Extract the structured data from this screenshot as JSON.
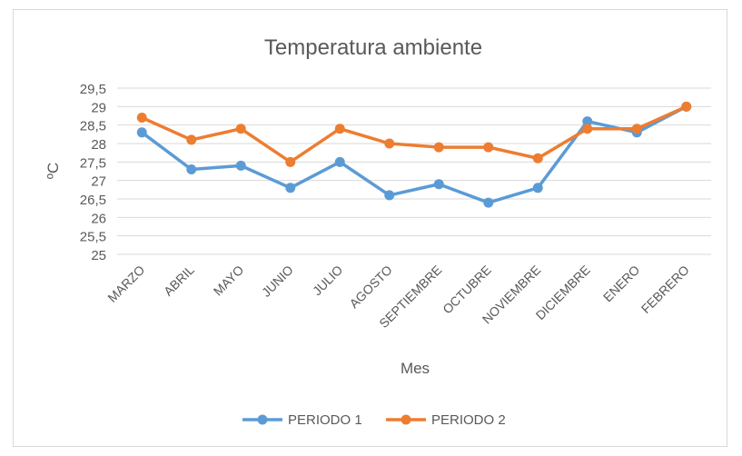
{
  "chart_data": {
    "type": "line",
    "title": "Temperatura ambiente",
    "xlabel": "Mes",
    "ylabel": "ºC",
    "ylim": [
      25,
      29.5
    ],
    "yticks": [
      "25",
      "25,5",
      "26",
      "26,5",
      "27",
      "27,5",
      "28",
      "28,5",
      "29",
      "29,5"
    ],
    "categories": [
      "MARZO",
      "ABRIL",
      "MAYO",
      "JUNIO",
      "JULIO",
      "AGOSTO",
      "SEPTIEMBRE",
      "OCTUBRE",
      "NOVIEMBRE",
      "DICIEMBRE",
      "ENERO",
      "FEBRERO"
    ],
    "grid": true,
    "legend_position": "bottom",
    "series": [
      {
        "name": "PERIODO 1",
        "color": "#5B9BD5",
        "values": [
          28.3,
          27.3,
          27.4,
          26.8,
          27.5,
          26.6,
          26.9,
          26.4,
          26.8,
          28.6,
          28.3,
          29.0
        ]
      },
      {
        "name": "PERIODO 2",
        "color": "#ED7D31",
        "values": [
          28.7,
          28.1,
          28.4,
          27.5,
          28.4,
          28.0,
          27.9,
          27.9,
          27.6,
          28.4,
          28.4,
          29.0
        ]
      }
    ]
  }
}
